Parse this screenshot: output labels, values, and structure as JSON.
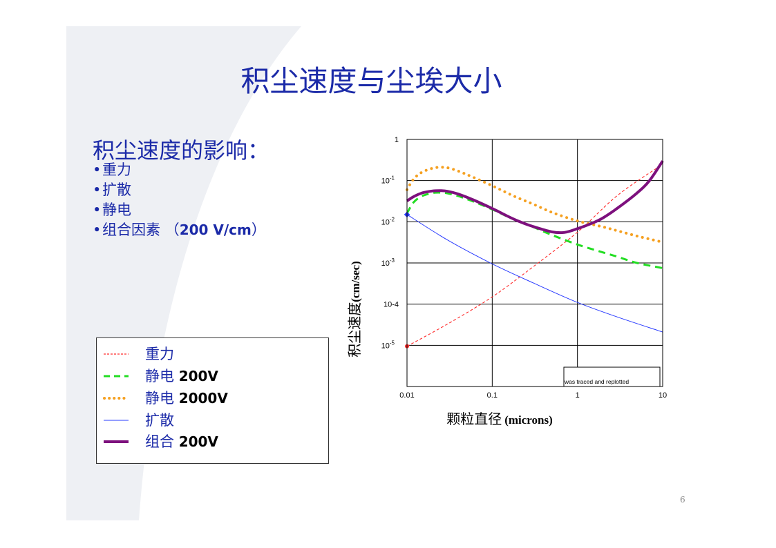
{
  "slide": {
    "title": "积尘速度与尘埃大小",
    "subheading": "积尘速度的影响：",
    "bullets": [
      {
        "text": "重力"
      },
      {
        "text": "扩散"
      },
      {
        "text": "静电"
      },
      {
        "text": "组合因素 （",
        "bold": "200 V/cm",
        "after": "）"
      }
    ],
    "page_number": "6"
  },
  "legend": [
    {
      "label": "重力",
      "value": "",
      "color": "#ff2a2a",
      "style": "fine-dash"
    },
    {
      "label": "静电",
      "value": "200V",
      "color": "#22dd22",
      "style": "dash"
    },
    {
      "label": "静电",
      "value": "2000V",
      "color": "#f5a020",
      "style": "dot"
    },
    {
      "label": "扩散",
      "value": "",
      "color": "#2a3cff",
      "style": "solid-thin"
    },
    {
      "label": "组合",
      "value": "200V",
      "color": "#7d107d",
      "style": "solid-thick"
    }
  ],
  "chart_data": {
    "type": "line",
    "xscale": "log",
    "yscale": "log",
    "xlim": [
      0.01,
      10
    ],
    "ylim": [
      1e-06,
      1
    ],
    "grid": true,
    "xlabel_cn": "颗粒直径",
    "xlabel_unit": "(microns)",
    "ylabel_cn": "积尘速度",
    "ylabel_unit": "(cm/sec)",
    "x_ticks": [
      "0.01",
      "0.1",
      "1",
      "10"
    ],
    "y_ticks": [
      {
        "base": "1",
        "exp": ""
      },
      {
        "base": "10",
        "exp": "-1"
      },
      {
        "base": "10",
        "exp": "-2"
      },
      {
        "base": "10",
        "exp": "-3"
      },
      {
        "base": "10-4",
        "exp": ""
      },
      {
        "base": "10",
        "exp": "-5"
      }
    ],
    "annotation": "was traced and replotted",
    "series": [
      {
        "name": "重力",
        "color": "#ff2a2a",
        "style": "fine-dash",
        "x": [
          0.01,
          0.03,
          0.1,
          0.3,
          1,
          3,
          10
        ],
        "y": [
          9.5e-06,
          3.3e-05,
          0.00015,
          0.0008,
          0.0056,
          0.045,
          0.25
        ]
      },
      {
        "name": "静电 200V",
        "color": "#22dd22",
        "style": "dash",
        "x": [
          0.01,
          0.012,
          0.015,
          0.02,
          0.025,
          0.03,
          0.04,
          0.06,
          0.1,
          0.15,
          0.2,
          0.3,
          0.5,
          1,
          2,
          3,
          5,
          10
        ],
        "y": [
          0.016,
          0.03,
          0.042,
          0.05,
          0.051,
          0.049,
          0.042,
          0.031,
          0.02,
          0.0135,
          0.0105,
          0.0075,
          0.0048,
          0.0028,
          0.0018,
          0.0014,
          0.001,
          0.00075
        ]
      },
      {
        "name": "静电 2000V",
        "color": "#f5a020",
        "style": "dot",
        "x": [
          0.01,
          0.012,
          0.015,
          0.02,
          0.025,
          0.03,
          0.04,
          0.06,
          0.1,
          0.15,
          0.2,
          0.3,
          0.5,
          1,
          2,
          3,
          5,
          10
        ],
        "y": [
          0.06,
          0.11,
          0.16,
          0.2,
          0.21,
          0.205,
          0.17,
          0.12,
          0.075,
          0.05,
          0.038,
          0.027,
          0.017,
          0.0105,
          0.0075,
          0.006,
          0.0045,
          0.0032
        ]
      },
      {
        "name": "扩散",
        "color": "#2a3cff",
        "style": "solid-thin",
        "x": [
          0.01,
          0.03,
          0.1,
          0.3,
          1,
          3,
          10
        ],
        "y": [
          0.015,
          0.0036,
          0.00095,
          0.00033,
          0.00011,
          4.8e-05,
          2.1e-05
        ]
      },
      {
        "name": "组合 200V",
        "color": "#7d107d",
        "style": "solid-thick",
        "x": [
          0.01,
          0.012,
          0.015,
          0.02,
          0.025,
          0.03,
          0.04,
          0.06,
          0.1,
          0.15,
          0.2,
          0.3,
          0.5,
          0.7,
          1,
          1.5,
          2,
          3,
          5,
          7,
          10
        ],
        "y": [
          0.032,
          0.041,
          0.05,
          0.056,
          0.057,
          0.055,
          0.047,
          0.034,
          0.021,
          0.0138,
          0.0105,
          0.0077,
          0.0057,
          0.0055,
          0.0068,
          0.0093,
          0.0125,
          0.022,
          0.05,
          0.1,
          0.3
        ]
      }
    ]
  }
}
